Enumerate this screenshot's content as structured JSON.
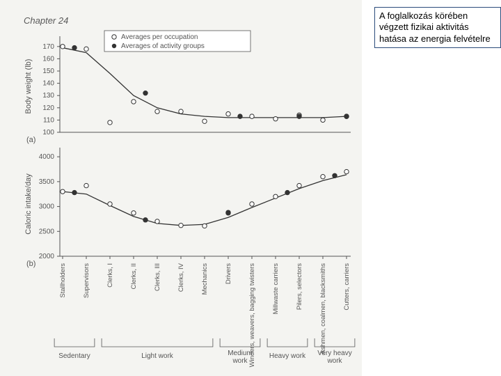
{
  "chapter": "Chapter 24",
  "annotation": "A foglalkozás körében végzett fizikai aktivitás hatása az energia felvételre",
  "legend": {
    "open": "Averages per occupation",
    "filled": "Averages of activity groups"
  },
  "panel_a": {
    "label": "(a)",
    "ylabel": "Body weight (lb)",
    "ylim": [
      100,
      175
    ],
    "yticks": [
      100,
      110,
      120,
      130,
      140,
      150,
      160,
      170
    ],
    "open_points": [
      {
        "x": 0,
        "y": 170
      },
      {
        "x": 1,
        "y": 168
      },
      {
        "x": 2,
        "y": 108
      },
      {
        "x": 3,
        "y": 125
      },
      {
        "x": 4,
        "y": 117
      },
      {
        "x": 5,
        "y": 117
      },
      {
        "x": 6,
        "y": 109
      },
      {
        "x": 7,
        "y": 115
      },
      {
        "x": 8,
        "y": 113
      },
      {
        "x": 9,
        "y": 111
      },
      {
        "x": 10,
        "y": 114
      },
      {
        "x": 11,
        "y": 110
      },
      {
        "x": 12,
        "y": 113
      }
    ],
    "filled_points": [
      {
        "x": 0.5,
        "y": 169
      },
      {
        "x": 3.5,
        "y": 132
      },
      {
        "x": 7.5,
        "y": 113
      },
      {
        "x": 10.0,
        "y": 113
      },
      {
        "x": 12.0,
        "y": 113
      }
    ],
    "curve": [
      {
        "x": 0,
        "y": 169
      },
      {
        "x": 1,
        "y": 165
      },
      {
        "x": 2,
        "y": 148
      },
      {
        "x": 3,
        "y": 130
      },
      {
        "x": 4,
        "y": 120
      },
      {
        "x": 5,
        "y": 115
      },
      {
        "x": 6,
        "y": 113
      },
      {
        "x": 7,
        "y": 112
      },
      {
        "x": 8,
        "y": 112
      },
      {
        "x": 9,
        "y": 112
      },
      {
        "x": 10,
        "y": 112
      },
      {
        "x": 11,
        "y": 112
      },
      {
        "x": 12,
        "y": 113
      }
    ]
  },
  "panel_b": {
    "label": "(b)",
    "ylabel": "Caloric intake/day",
    "ylim": [
      2000,
      4100
    ],
    "yticks": [
      2000,
      2500,
      3000,
      3500,
      4000
    ],
    "open_points": [
      {
        "x": 0,
        "y": 3300
      },
      {
        "x": 1,
        "y": 3420
      },
      {
        "x": 2,
        "y": 3050
      },
      {
        "x": 3,
        "y": 2870
      },
      {
        "x": 4,
        "y": 2700
      },
      {
        "x": 5,
        "y": 2620
      },
      {
        "x": 6,
        "y": 2610
      },
      {
        "x": 7,
        "y": 2880
      },
      {
        "x": 8,
        "y": 3050
      },
      {
        "x": 9,
        "y": 3200
      },
      {
        "x": 10,
        "y": 3420
      },
      {
        "x": 11,
        "y": 3600
      },
      {
        "x": 12,
        "y": 3700
      }
    ],
    "filled_points": [
      {
        "x": 0.5,
        "y": 3280
      },
      {
        "x": 3.5,
        "y": 2730
      },
      {
        "x": 7.0,
        "y": 2870
      },
      {
        "x": 9.5,
        "y": 3280
      },
      {
        "x": 11.5,
        "y": 3620
      }
    ],
    "curve": [
      {
        "x": 0,
        "y": 3300
      },
      {
        "x": 1,
        "y": 3250
      },
      {
        "x": 2,
        "y": 3020
      },
      {
        "x": 3,
        "y": 2800
      },
      {
        "x": 4,
        "y": 2660
      },
      {
        "x": 5,
        "y": 2620
      },
      {
        "x": 6,
        "y": 2640
      },
      {
        "x": 7,
        "y": 2780
      },
      {
        "x": 8,
        "y": 2980
      },
      {
        "x": 9,
        "y": 3170
      },
      {
        "x": 10,
        "y": 3360
      },
      {
        "x": 11,
        "y": 3520
      },
      {
        "x": 12,
        "y": 3640
      }
    ]
  },
  "x_categories": [
    "Stallholders",
    "Supervisors",
    "Clerks, I",
    "Clerks, II",
    "Clerks, III",
    "Clerks, IV",
    "Mechanics",
    "Drivers",
    "Winders, weavers, bagging twisters",
    "Millwaste carriers",
    "Pilers, selectors",
    "Ashmen, coalmen, blacksmiths",
    "Cutters, carriers"
  ],
  "groups": [
    {
      "label": "Sedentary",
      "from": 0,
      "to": 1
    },
    {
      "label": "Light work",
      "from": 2,
      "to": 6
    },
    {
      "label": "Medium work",
      "from": 7,
      "to": 8
    },
    {
      "label": "Heavy work",
      "from": 9,
      "to": 10
    },
    {
      "label": "Very heavy work",
      "from": 11,
      "to": 12
    }
  ],
  "style": {
    "bg": "#f4f4f1",
    "axis_color": "#555555",
    "text_color": "#555555",
    "point_stroke": "#333333",
    "curve_color": "#333333",
    "tick_font": 10,
    "label_font": 11,
    "marker_r": 3.2
  }
}
